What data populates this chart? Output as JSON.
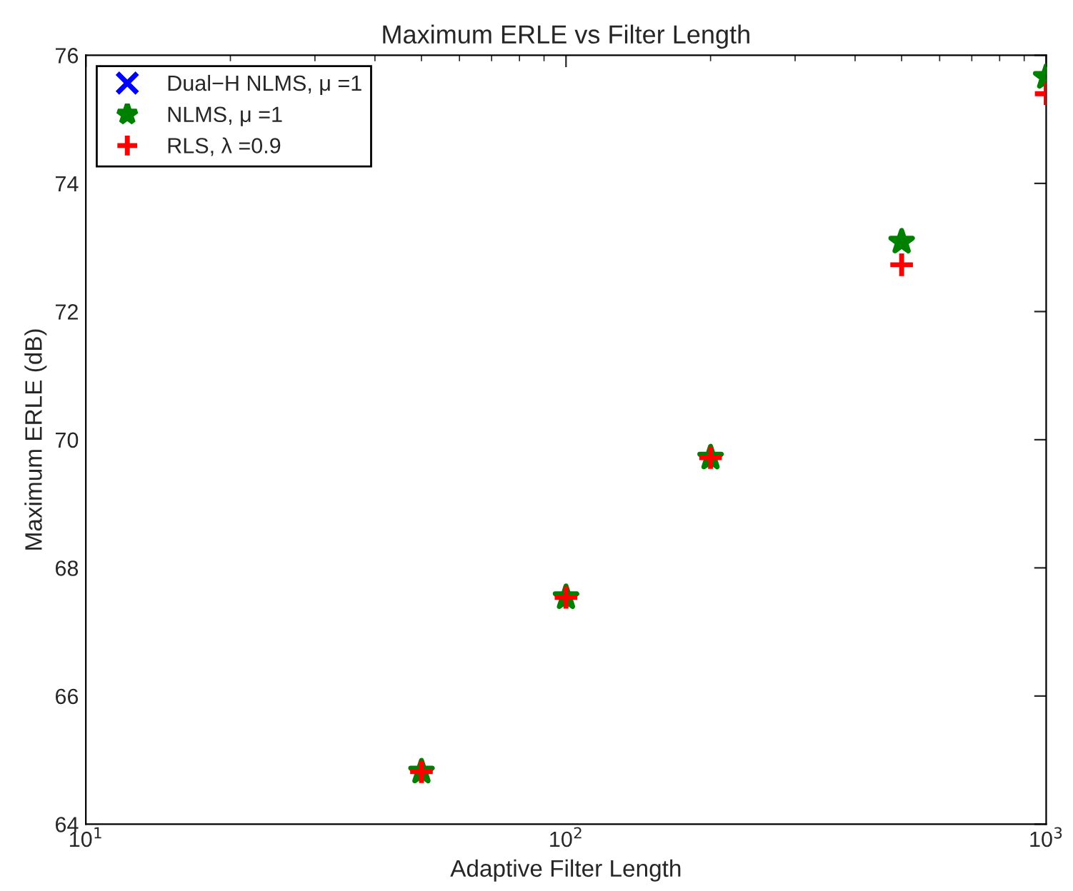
{
  "chart_data": {
    "type": "scatter",
    "title": "Maximum ERLE vs Filter Length",
    "xlabel": "Adaptive Filter Length",
    "ylabel": "Maximum ERLE (dB)",
    "x": [
      50,
      100,
      200,
      500,
      1000
    ],
    "series": [
      {
        "name": "Dual−H NLMS, μ =1",
        "color": "#0000ff",
        "marker": "x",
        "values": [
          null,
          null,
          null,
          null,
          null
        ]
      },
      {
        "name": "NLMS, μ =1",
        "color": "#008000",
        "marker": "star",
        "values": [
          64.82,
          67.54,
          69.72,
          73.09,
          75.66
        ]
      },
      {
        "name": "RLS, λ =0.9",
        "color": "#ff0000",
        "marker": "cross",
        "values": [
          64.82,
          67.54,
          69.72,
          72.73,
          75.4
        ]
      }
    ],
    "log": "x",
    "xlim": [
      10,
      1000
    ],
    "xticks": [
      {
        "value": 10,
        "label": "10$^{1}$"
      },
      {
        "value": 100,
        "label": "10$^{2}$"
      },
      {
        "value": 1000,
        "label": "10$^{3}$"
      }
    ],
    "ylim": [
      64,
      76
    ],
    "yticks": [
      64,
      66,
      68,
      70,
      72,
      74,
      76
    ],
    "grid": false,
    "legend": "top left"
  }
}
